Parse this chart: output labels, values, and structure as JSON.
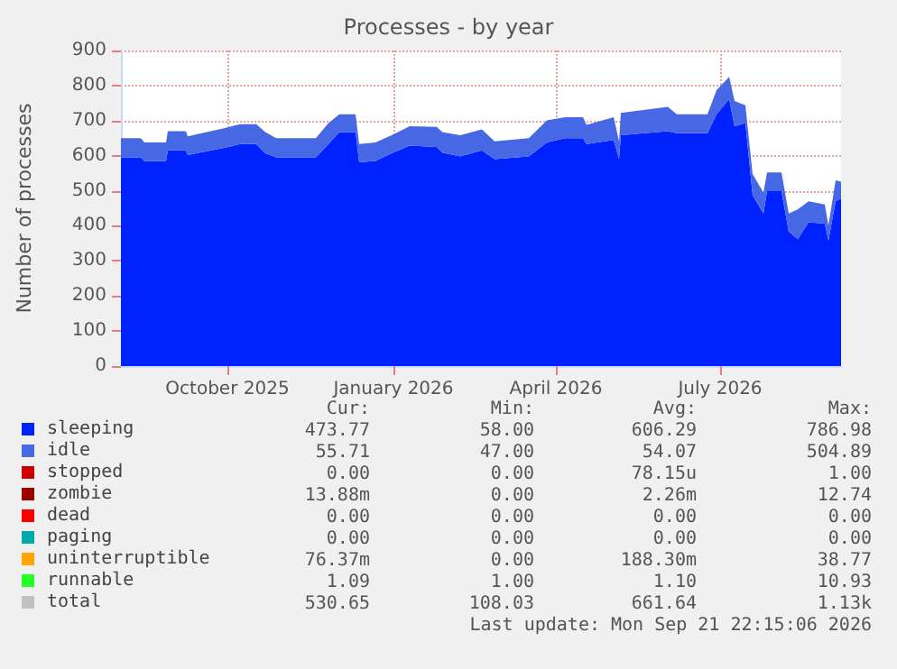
{
  "chart_data": {
    "type": "area",
    "title": "Processes - by year",
    "ylabel": "Number of processes",
    "stacked": true,
    "marker": "none",
    "grid": true,
    "legend": "bottom left",
    "xlim": [
      "2025-08-18",
      "2026-09-21"
    ],
    "xticks": [
      {
        "value": "2025-10-16",
        "label": "October 2025"
      },
      {
        "value": "2026-01-16",
        "label": "January 2026"
      },
      {
        "value": "2026-04-16",
        "label": "April 2026"
      },
      {
        "value": "2026-07-16",
        "label": "July 2026"
      }
    ],
    "ylim": [
      0,
      900
    ],
    "yticks": [
      0,
      100,
      200,
      300,
      400,
      500,
      600,
      700,
      800,
      900
    ],
    "x": [
      "2025-08-18",
      "2025-08-29",
      "2025-08-31",
      "2025-09-12",
      "2025-09-13",
      "2025-09-23",
      "2025-09-24",
      "2025-09-30",
      "2025-10-13",
      "2025-10-23",
      "2025-11-01",
      "2025-11-06",
      "2025-11-12",
      "2025-12-04",
      "2025-12-11",
      "2025-12-17",
      "2025-12-26",
      "2025-12-28",
      "2026-01-06",
      "2026-01-15",
      "2026-01-25",
      "2026-02-09",
      "2026-02-12",
      "2026-02-22",
      "2026-03-06",
      "2026-03-13",
      "2026-04-01",
      "2026-04-11",
      "2026-04-21",
      "2026-05-01",
      "2026-05-03",
      "2026-05-18",
      "2026-05-21",
      "2026-05-22",
      "2026-06-17",
      "2026-06-22",
      "2026-07-09",
      "2026-07-14",
      "2026-07-21",
      "2026-07-24",
      "2026-07-30",
      "2026-08-03",
      "2026-08-09",
      "2026-08-11",
      "2026-08-19",
      "2026-08-23",
      "2026-08-28",
      "2026-09-03",
      "2026-09-12",
      "2026-09-14",
      "2026-09-18",
      "2026-09-21"
    ],
    "series": [
      {
        "name": "sleeping",
        "color": "#0022ff",
        "values": [
          595,
          595,
          585,
          585,
          615,
          615,
          602,
          608,
          621,
          633,
          633,
          607,
          595,
          595,
          633,
          667,
          667,
          581,
          585,
          607,
          629,
          625,
          609,
          598,
          615,
          590,
          598,
          638,
          650,
          650,
          633,
          645,
          590,
          658,
          670,
          664,
          664,
          718,
          761,
          684,
          693,
          487,
          435,
          499,
          499,
          384,
          362,
          410,
          406,
          358,
          470,
          478
        ]
      },
      {
        "name": "idle",
        "color": "#4668e4",
        "values": [
          55,
          55,
          53,
          53,
          55,
          55,
          53,
          54,
          56,
          57,
          57,
          60,
          55,
          55,
          60,
          51,
          51,
          52,
          53,
          51,
          55,
          57,
          58,
          60,
          60,
          51,
          52,
          63,
          60,
          60,
          55,
          65,
          51,
          64,
          69,
          54,
          54,
          69,
          64,
          72,
          51,
          60,
          60,
          53,
          53,
          51,
          85,
          60,
          55,
          43,
          60,
          48
        ]
      },
      {
        "name": "stopped",
        "color": "#cc0000",
        "values": [
          null,
          null,
          null,
          null,
          null,
          null,
          null,
          null,
          null,
          null,
          null,
          null,
          null,
          null,
          null,
          null,
          null,
          null,
          null,
          null,
          null,
          null,
          null,
          null,
          null,
          null,
          null,
          null,
          null,
          null,
          null,
          null,
          null,
          null,
          null,
          null,
          null,
          null,
          null,
          null,
          null,
          null,
          null,
          null,
          null,
          null,
          null,
          null,
          null,
          null,
          null,
          null
        ]
      },
      {
        "name": "zombie",
        "color": "#990000",
        "values": [
          null,
          null,
          null,
          null,
          null,
          null,
          null,
          null,
          null,
          null,
          null,
          null,
          null,
          null,
          null,
          null,
          null,
          null,
          null,
          null,
          null,
          null,
          null,
          null,
          null,
          null,
          null,
          null,
          null,
          null,
          null,
          null,
          null,
          null,
          null,
          null,
          null,
          null,
          null,
          null,
          null,
          null,
          null,
          null,
          null,
          null,
          null,
          null,
          null,
          null,
          null,
          null
        ]
      },
      {
        "name": "dead",
        "color": "#ff0000",
        "values": [
          null,
          null,
          null,
          null,
          null,
          null,
          null,
          null,
          null,
          null,
          null,
          null,
          null,
          null,
          null,
          null,
          null,
          null,
          null,
          null,
          null,
          null,
          null,
          null,
          null,
          null,
          null,
          null,
          null,
          null,
          null,
          null,
          null,
          null,
          null,
          null,
          null,
          null,
          null,
          null,
          null,
          null,
          null,
          null,
          null,
          null,
          null,
          null,
          null,
          null,
          null,
          null
        ]
      },
      {
        "name": "paging",
        "color": "#00aaaa",
        "values": [
          null,
          null,
          null,
          null,
          null,
          null,
          null,
          null,
          null,
          null,
          null,
          null,
          null,
          null,
          null,
          null,
          null,
          null,
          null,
          null,
          null,
          null,
          null,
          null,
          null,
          null,
          null,
          null,
          null,
          null,
          null,
          null,
          null,
          null,
          null,
          null,
          null,
          null,
          null,
          null,
          null,
          null,
          null,
          null,
          null,
          null,
          null,
          null,
          null,
          null,
          null,
          null
        ]
      },
      {
        "name": "uninterruptible",
        "color": "#ffa500",
        "values": [
          null,
          null,
          null,
          null,
          null,
          null,
          null,
          null,
          null,
          null,
          null,
          null,
          null,
          null,
          null,
          null,
          null,
          null,
          null,
          null,
          null,
          null,
          null,
          null,
          null,
          null,
          null,
          null,
          null,
          null,
          null,
          null,
          null,
          null,
          null,
          null,
          null,
          null,
          null,
          null,
          null,
          null,
          null,
          null,
          null,
          null,
          null,
          null,
          null,
          null,
          null,
          null
        ]
      },
      {
        "name": "runnable",
        "color": "#22ff22",
        "values": [
          null,
          null,
          null,
          null,
          null,
          null,
          null,
          null,
          null,
          null,
          null,
          null,
          null,
          null,
          null,
          null,
          null,
          null,
          null,
          null,
          null,
          null,
          null,
          null,
          null,
          null,
          null,
          null,
          null,
          null,
          null,
          null,
          null,
          null,
          null,
          null,
          null,
          null,
          null,
          null,
          null,
          null,
          null,
          null,
          null,
          null,
          null,
          null,
          null,
          null,
          null,
          null
        ]
      },
      {
        "name": "total",
        "type": "line",
        "color": "#c0c0c0",
        "values": [
          null,
          null,
          null,
          null,
          null,
          null,
          null,
          null,
          null,
          null,
          null,
          null,
          null,
          null,
          null,
          null,
          null,
          null,
          null,
          null,
          null,
          null,
          null,
          null,
          null,
          null,
          null,
          null,
          null,
          null,
          null,
          null,
          null,
          null,
          null,
          null,
          null,
          null,
          null,
          null,
          null,
          null,
          null,
          null,
          null,
          null,
          null,
          null,
          null,
          null,
          null,
          null
        ]
      }
    ],
    "annotations": [
      "Cur:",
      "Min:",
      "Avg:",
      "Max:",
      "473.77",
      "58.00",
      "606.29",
      "786.98",
      "55.71",
      "47.00",
      "54.07",
      "504.89",
      "0.00",
      "0.00",
      "78.15u",
      "1.00",
      "13.88m",
      "0.00",
      "2.26m",
      "12.74",
      "0.00",
      "0.00",
      "0.00",
      "0.00",
      "0.00",
      "0.00",
      "0.00",
      "0.00",
      "76.37m",
      "0.00",
      "188.30m",
      "38.77",
      "1.09",
      "1.00",
      "1.10",
      "10.93",
      "530.65",
      "108.03",
      "661.64",
      "1.13k",
      "Last update: Mon Sep 21 22:15:06 2026"
    ]
  }
}
